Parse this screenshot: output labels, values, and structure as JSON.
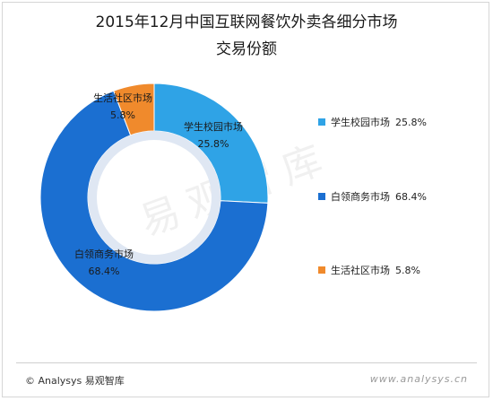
{
  "title_line1": "2015年12月中国互联网餐饮外卖各细分市场",
  "title_line2": "交易份额",
  "chart_data": {
    "type": "pie",
    "title": "2015年12月中国互联网餐饮外卖各细分市场 交易份额",
    "categories": [
      "学生校园市场",
      "白领商务市场",
      "生活社区市场"
    ],
    "values": [
      25.8,
      68.4,
      5.8
    ],
    "value_labels": [
      "25.8%",
      "68.4%",
      "5.8%"
    ],
    "colors": [
      "#2fa3e6",
      "#1b6fd1",
      "#f08a2c"
    ],
    "legend_position": "right",
    "donut": true
  },
  "legend": [
    {
      "label": "学生校园市场",
      "value": "25.8%",
      "color": "#2fa3e6"
    },
    {
      "label": "白领商务市场",
      "value": "68.4%",
      "color": "#1b6fd1"
    },
    {
      "label": "生活社区市场",
      "value": "5.8%",
      "color": "#f08a2c"
    }
  ],
  "watermark": "易观智库",
  "footer": {
    "copyright": "© Analysys 易观智库",
    "site": "www.analysys.cn"
  }
}
